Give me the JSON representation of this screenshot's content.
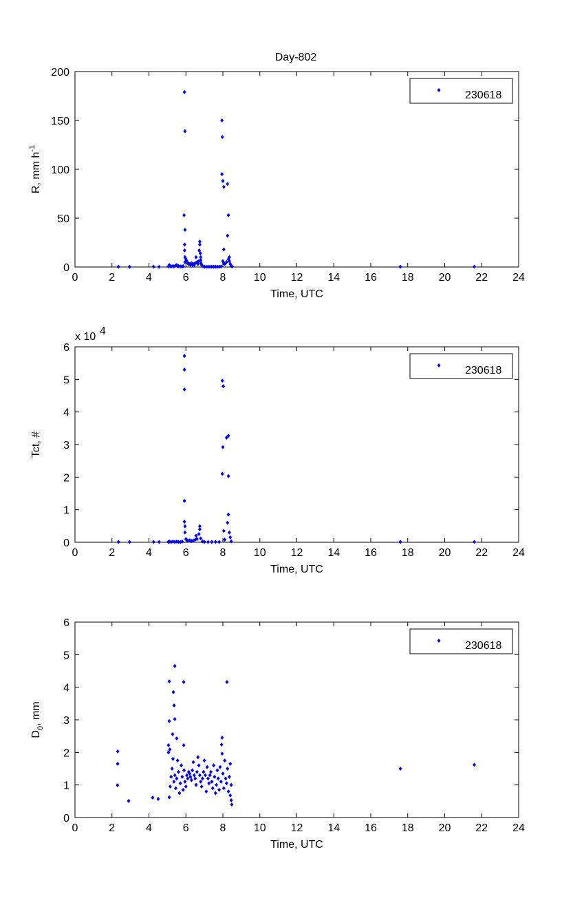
{
  "figure_title": "Day-802",
  "chart_data": [
    {
      "type": "scatter",
      "title": "Day-802",
      "xlabel": "Time, UTC",
      "ylabel": {
        "main": "R, mm h",
        "sup": "-1",
        "sub": "",
        "tail": ""
      },
      "xlim": [
        0,
        24
      ],
      "ylim": [
        0,
        200
      ],
      "xticks": [
        0,
        2,
        4,
        6,
        8,
        10,
        12,
        14,
        16,
        18,
        20,
        22,
        24
      ],
      "yticks": [
        0,
        50,
        100,
        150,
        200
      ],
      "exponent_label": null,
      "grid": false,
      "legend": {
        "entries": [
          "230618"
        ],
        "position": "top-right"
      },
      "color": "#0000ff",
      "points": [
        [
          2.35,
          0.3
        ],
        [
          2.95,
          0.2
        ],
        [
          4.25,
          0.3
        ],
        [
          4.55,
          0.2
        ],
        [
          5.05,
          0.5
        ],
        [
          5.1,
          2
        ],
        [
          5.15,
          1
        ],
        [
          5.2,
          0.5
        ],
        [
          5.3,
          1
        ],
        [
          5.35,
          0.5
        ],
        [
          5.45,
          1.5
        ],
        [
          5.5,
          2
        ],
        [
          5.55,
          0.8
        ],
        [
          5.6,
          1
        ],
        [
          5.7,
          0.5
        ],
        [
          5.8,
          0.6
        ],
        [
          5.85,
          0.8
        ],
        [
          5.9,
          53
        ],
        [
          5.95,
          38
        ],
        [
          5.92,
          179
        ],
        [
          5.95,
          139
        ],
        [
          5.93,
          23
        ],
        [
          5.93,
          17
        ],
        [
          5.95,
          10
        ],
        [
          5.95,
          5
        ],
        [
          6.0,
          8
        ],
        [
          6.05,
          6
        ],
        [
          6.1,
          4
        ],
        [
          6.15,
          3
        ],
        [
          6.2,
          3
        ],
        [
          6.25,
          2
        ],
        [
          6.3,
          4
        ],
        [
          6.35,
          2
        ],
        [
          6.4,
          3
        ],
        [
          6.45,
          2
        ],
        [
          6.5,
          4
        ],
        [
          6.55,
          10
        ],
        [
          6.6,
          5
        ],
        [
          6.65,
          3
        ],
        [
          6.7,
          6
        ],
        [
          6.75,
          26
        ],
        [
          6.75,
          23
        ],
        [
          6.72,
          17
        ],
        [
          6.78,
          14
        ],
        [
          6.8,
          10
        ],
        [
          6.8,
          7
        ],
        [
          6.82,
          4
        ],
        [
          6.85,
          2
        ],
        [
          6.9,
          1
        ],
        [
          7.0,
          0.3
        ],
        [
          7.1,
          0.3
        ],
        [
          7.2,
          0.3
        ],
        [
          7.3,
          0.3
        ],
        [
          7.4,
          0.3
        ],
        [
          7.5,
          0.3
        ],
        [
          7.6,
          0.3
        ],
        [
          7.7,
          0.3
        ],
        [
          7.8,
          0.3
        ],
        [
          7.9,
          0.5
        ],
        [
          7.95,
          150
        ],
        [
          7.97,
          133
        ],
        [
          7.95,
          95
        ],
        [
          8.0,
          88
        ],
        [
          8.05,
          82
        ],
        [
          8.25,
          85
        ],
        [
          8.3,
          53
        ],
        [
          8.25,
          32
        ],
        [
          8.05,
          18
        ],
        [
          8.0,
          6
        ],
        [
          8.05,
          4
        ],
        [
          8.1,
          3
        ],
        [
          8.2,
          5
        ],
        [
          8.3,
          8
        ],
        [
          8.35,
          10
        ],
        [
          8.35,
          6
        ],
        [
          8.4,
          3
        ],
        [
          8.45,
          1
        ],
        [
          8.5,
          0.5
        ],
        [
          17.6,
          0.3
        ],
        [
          21.6,
          0.3
        ]
      ]
    },
    {
      "type": "scatter",
      "xlabel": "Time, UTC",
      "ylabel": {
        "main": "Tct, #",
        "sup": "",
        "sub": "",
        "tail": ""
      },
      "xlim": [
        0,
        24
      ],
      "ylim": [
        0,
        6
      ],
      "xticks": [
        0,
        2,
        4,
        6,
        8,
        10,
        12,
        14,
        16,
        18,
        20,
        22,
        24
      ],
      "yticks": [
        0,
        1,
        2,
        3,
        4,
        5,
        6
      ],
      "exponent_label": {
        "base": "x 10",
        "power": "4"
      },
      "grid": false,
      "legend": {
        "entries": [
          "230618"
        ],
        "position": "top-right"
      },
      "color": "#0000ff",
      "points": [
        [
          2.35,
          0.01
        ],
        [
          2.95,
          0.01
        ],
        [
          4.25,
          0.01
        ],
        [
          4.55,
          0.01
        ],
        [
          5.05,
          0.01
        ],
        [
          5.1,
          0.02
        ],
        [
          5.2,
          0.01
        ],
        [
          5.3,
          0.02
        ],
        [
          5.4,
          0.01
        ],
        [
          5.5,
          0.02
        ],
        [
          5.6,
          0.01
        ],
        [
          5.7,
          0.01
        ],
        [
          5.8,
          0.02
        ],
        [
          5.92,
          5.72
        ],
        [
          5.92,
          5.3
        ],
        [
          5.92,
          4.69
        ],
        [
          5.92,
          1.27
        ],
        [
          5.92,
          0.63
        ],
        [
          5.95,
          0.49
        ],
        [
          5.95,
          0.3
        ],
        [
          6.0,
          0.1
        ],
        [
          6.1,
          0.05
        ],
        [
          6.2,
          0.06
        ],
        [
          6.3,
          0.04
        ],
        [
          6.4,
          0.05
        ],
        [
          6.5,
          0.08
        ],
        [
          6.55,
          0.2
        ],
        [
          6.6,
          0.1
        ],
        [
          6.7,
          0.25
        ],
        [
          6.75,
          0.49
        ],
        [
          6.75,
          0.4
        ],
        [
          6.8,
          0.12
        ],
        [
          6.9,
          0.03
        ],
        [
          7.0,
          0.01
        ],
        [
          7.2,
          0.01
        ],
        [
          7.4,
          0.01
        ],
        [
          7.6,
          0.01
        ],
        [
          7.8,
          0.01
        ],
        [
          7.97,
          4.96
        ],
        [
          8.02,
          4.79
        ],
        [
          8.2,
          3.21
        ],
        [
          8.3,
          3.27
        ],
        [
          8.0,
          2.92
        ],
        [
          7.97,
          2.1
        ],
        [
          8.3,
          2.03
        ],
        [
          8.3,
          0.85
        ],
        [
          8.25,
          0.6
        ],
        [
          8.35,
          0.3
        ],
        [
          8.4,
          0.15
        ],
        [
          8.05,
          0.35
        ],
        [
          8.1,
          0.08
        ],
        [
          8.45,
          0.03
        ],
        [
          17.6,
          0.01
        ],
        [
          21.6,
          0.01
        ]
      ]
    },
    {
      "type": "scatter",
      "xlabel": "Time, UTC",
      "ylabel": {
        "main": "D",
        "sup": "",
        "sub": "0",
        "tail": ", mm"
      },
      "xlim": [
        0,
        24
      ],
      "ylim": [
        0,
        6
      ],
      "xticks": [
        0,
        2,
        4,
        6,
        8,
        10,
        12,
        14,
        16,
        18,
        20,
        22,
        24
      ],
      "yticks": [
        0,
        1,
        2,
        3,
        4,
        5,
        6
      ],
      "exponent_label": null,
      "grid": false,
      "legend": {
        "entries": [
          "230618"
        ],
        "position": "top-right"
      },
      "color": "#0000ff",
      "points": [
        [
          2.31,
          2.03
        ],
        [
          2.31,
          1.65
        ],
        [
          2.3,
          0.99
        ],
        [
          2.9,
          0.51
        ],
        [
          4.2,
          0.61
        ],
        [
          4.5,
          0.57
        ],
        [
          5.1,
          4.18
        ],
        [
          5.4,
          4.65
        ],
        [
          5.88,
          4.16
        ],
        [
          5.32,
          3.85
        ],
        [
          5.36,
          3.44
        ],
        [
          5.1,
          2.96
        ],
        [
          5.4,
          3.02
        ],
        [
          5.28,
          2.56
        ],
        [
          5.5,
          2.43
        ],
        [
          5.06,
          2.22
        ],
        [
          5.13,
          2.09
        ],
        [
          5.06,
          2.0
        ],
        [
          5.88,
          2.22
        ],
        [
          8.22,
          4.16
        ],
        [
          7.96,
          2.45
        ],
        [
          7.93,
          2.24
        ],
        [
          7.96,
          1.96
        ],
        [
          8.45,
          0.53
        ],
        [
          8.48,
          0.4
        ],
        [
          8.4,
          0.68
        ],
        [
          5.1,
          0.62
        ],
        [
          5.15,
          0.95
        ],
        [
          5.2,
          1.25
        ],
        [
          5.25,
          1.5
        ],
        [
          5.3,
          1.8
        ],
        [
          5.35,
          1.1
        ],
        [
          5.4,
          1.3
        ],
        [
          5.45,
          0.9
        ],
        [
          5.5,
          1.2
        ],
        [
          5.55,
          1.75
        ],
        [
          5.6,
          1.4
        ],
        [
          5.65,
          0.75
        ],
        [
          5.7,
          1.05
        ],
        [
          5.75,
          1.6
        ],
        [
          5.8,
          1.25
        ],
        [
          5.85,
          0.85
        ],
        [
          5.9,
          1.45
        ],
        [
          5.95,
          1.1
        ],
        [
          6.0,
          0.95
        ],
        [
          6.05,
          1.3
        ],
        [
          6.1,
          1.2
        ],
        [
          6.15,
          1.4
        ],
        [
          6.2,
          1.35
        ],
        [
          6.25,
          1.25
        ],
        [
          6.3,
          1.15
        ],
        [
          6.35,
          1.45
        ],
        [
          6.4,
          1.7
        ],
        [
          6.45,
          1.3
        ],
        [
          6.5,
          1.2
        ],
        [
          6.55,
          1.0
        ],
        [
          6.6,
          1.4
        ],
        [
          6.65,
          1.85
        ],
        [
          6.7,
          1.6
        ],
        [
          6.75,
          1.3
        ],
        [
          6.8,
          1.1
        ],
        [
          6.85,
          0.95
        ],
        [
          6.9,
          1.2
        ],
        [
          6.95,
          1.4
        ],
        [
          7.0,
          1.75
        ],
        [
          7.05,
          1.3
        ],
        [
          7.1,
          0.8
        ],
        [
          7.15,
          1.55
        ],
        [
          7.2,
          1.2
        ],
        [
          7.25,
          1.05
        ],
        [
          7.3,
          1.3
        ],
        [
          7.35,
          1.4
        ],
        [
          7.4,
          1.1
        ],
        [
          7.45,
          0.9
        ],
        [
          7.5,
          1.6
        ],
        [
          7.55,
          1.25
        ],
        [
          7.6,
          0.75
        ],
        [
          7.65,
          1.0
        ],
        [
          7.7,
          1.45
        ],
        [
          7.75,
          1.2
        ],
        [
          7.8,
          0.85
        ],
        [
          7.85,
          1.55
        ],
        [
          7.9,
          1.1
        ],
        [
          8.0,
          1.35
        ],
        [
          8.05,
          0.9
        ],
        [
          8.1,
          1.75
        ],
        [
          8.15,
          1.2
        ],
        [
          8.2,
          1.05
        ],
        [
          8.25,
          1.5
        ],
        [
          8.3,
          0.8
        ],
        [
          8.35,
          1.25
        ],
        [
          8.4,
          1.65
        ],
        [
          8.45,
          1.0
        ],
        [
          17.6,
          1.5
        ],
        [
          21.6,
          1.62
        ]
      ]
    }
  ]
}
